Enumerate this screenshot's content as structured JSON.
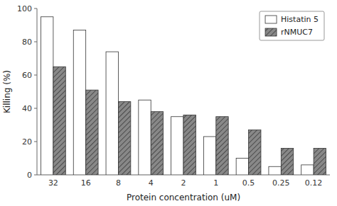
{
  "chart_data": {
    "type": "bar",
    "categories": [
      "32",
      "16",
      "8",
      "4",
      "2",
      "1",
      "0.5",
      "0.25",
      "0.12"
    ],
    "series": [
      {
        "name": "Histatin 5",
        "color": "#ffffff",
        "values": [
          95,
          87,
          74,
          45,
          35,
          23,
          10,
          5,
          6
        ]
      },
      {
        "name": "rNMUC7",
        "color": "#888888",
        "values": [
          65,
          51,
          44,
          38,
          36,
          35,
          27,
          16,
          16
        ]
      }
    ],
    "xlabel": "Protein concentration (uM)",
    "ylabel": "Killing (%)",
    "ylim": [
      0,
      100
    ],
    "yticks": [
      0,
      20,
      40,
      60,
      80,
      100
    ],
    "grid": false,
    "legend": "top-right"
  }
}
